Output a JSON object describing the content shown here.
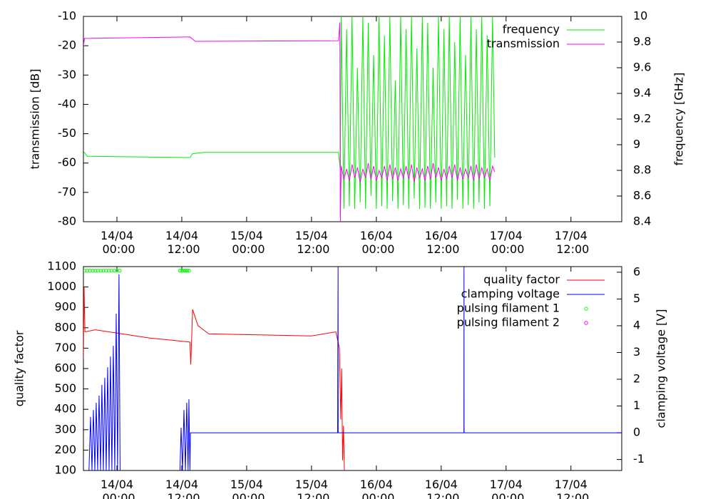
{
  "chart_data": [
    {
      "type": "line",
      "y_label": "transmission [dB]",
      "y2_label": "frequency [GHz]",
      "xlim": [
        "13/04 17:48",
        "17/04 21:24"
      ],
      "xticks": [
        "14/04 00:00",
        "14/04 12:00",
        "15/04 00:00",
        "15/04 12:00",
        "16/04 00:00",
        "16/04 12:00",
        "17/04 00:00",
        "17/04 12:00"
      ],
      "ylim": [
        -80,
        -10
      ],
      "yticks": [
        -80,
        -70,
        -60,
        -50,
        -40,
        -30,
        -20,
        -10
      ],
      "y2lim": [
        8.4,
        10
      ],
      "y2ticks": [
        8.4,
        8.6,
        8.8,
        9,
        9.2,
        9.4,
        9.6,
        9.8,
        10
      ],
      "legend": "upper right",
      "series": [
        {
          "name": "frequency",
          "color": "#00ee00",
          "axis": "y2",
          "x": [
            "13/04 17:48",
            "13/04 18:30",
            "14/04 13:30",
            "14/04 14:00",
            "14/04 16:00",
            "15/04 17:00",
            "15/04 17:20",
            "15/04 17:30",
            "15/04 18:00",
            "15/04 18:30",
            "15/04 19:00",
            "15/04 19:30",
            "15/04 20:00",
            "15/04 20:30",
            "15/04 21:00",
            "15/04 21:30",
            "15/04 22:00",
            "15/04 22:30",
            "15/04 23:00",
            "15/04 23:30",
            "16/04 00:00",
            "16/04 00:30",
            "16/04 01:00",
            "16/04 01:30",
            "16/04 02:00",
            "16/04 02:30",
            "16/04 03:00",
            "16/04 03:30",
            "16/04 04:00",
            "16/04 04:30",
            "16/04 05:00",
            "16/04 05:30",
            "16/04 06:00",
            "16/04 06:30",
            "16/04 07:00",
            "16/04 07:30",
            "16/04 08:00",
            "16/04 08:30",
            "16/04 09:00",
            "16/04 09:30",
            "16/04 10:00",
            "16/04 10:30",
            "16/04 11:00",
            "16/04 11:30",
            "16/04 12:00",
            "16/04 12:30",
            "16/04 13:00",
            "16/04 13:30",
            "16/04 14:00",
            "16/04 14:30",
            "16/04 15:00",
            "16/04 15:30",
            "16/04 16:00",
            "16/04 16:30",
            "16/04 17:00",
            "16/04 17:30",
            "16/04 18:00",
            "16/04 18:30",
            "16/04 19:00",
            "16/04 19:30",
            "16/04 20:00",
            "16/04 20:30",
            "16/04 21:00",
            "16/04 21:30",
            "16/04 21:54"
          ],
          "values": [
            8.95,
            8.91,
            8.9,
            8.93,
            8.94,
            8.94,
            8.8,
            10,
            8.5,
            9.9,
            8.52,
            10,
            8.5,
            9.6,
            8.55,
            10,
            8.5,
            9.95,
            8.6,
            9.7,
            8.5,
            10,
            8.52,
            9.85,
            8.5,
            10,
            8.56,
            9.5,
            8.5,
            10,
            8.53,
            9.9,
            8.5,
            10,
            8.58,
            9.75,
            8.5,
            10,
            8.51,
            9.95,
            8.5,
            9.6,
            8.55,
            10,
            8.5,
            9.9,
            8.52,
            10,
            8.5,
            9.8,
            8.57,
            10,
            8.5,
            9.7,
            8.53,
            10,
            8.5,
            9.9,
            8.55,
            10,
            8.5,
            9.85,
            8.52,
            10,
            8.9
          ]
        },
        {
          "name": "transmission",
          "color": "#ff00ff",
          "x": [
            "13/04 17:48",
            "13/04 18:00",
            "14/04 13:30",
            "14/04 14:30",
            "15/04 17:00",
            "15/04 17:15",
            "15/04 17:20",
            "15/04 17:30",
            "15/04 18:00",
            "15/04 18:30",
            "15/04 19:00",
            "15/04 19:30",
            "15/04 20:00",
            "15/04 20:30",
            "15/04 21:00",
            "15/04 21:30",
            "15/04 22:00",
            "15/04 22:30",
            "15/04 23:00",
            "15/04 23:30",
            "16/04 00:00",
            "16/04 00:30",
            "16/04 01:00",
            "16/04 01:30",
            "16/04 02:00",
            "16/04 02:30",
            "16/04 03:00",
            "16/04 03:30",
            "16/04 04:00",
            "16/04 04:30",
            "16/04 05:00",
            "16/04 05:30",
            "16/04 06:00",
            "16/04 06:30",
            "16/04 07:00",
            "16/04 07:30",
            "16/04 08:00",
            "16/04 08:30",
            "16/04 09:00",
            "16/04 09:30",
            "16/04 10:00",
            "16/04 10:30",
            "16/04 11:00",
            "16/04 11:30",
            "16/04 12:00",
            "16/04 12:30",
            "16/04 13:00",
            "16/04 13:30",
            "16/04 14:00",
            "16/04 14:30",
            "16/04 15:00",
            "16/04 15:30",
            "16/04 16:00",
            "16/04 16:30",
            "16/04 17:00",
            "16/04 17:30",
            "16/04 18:00",
            "16/04 18:30",
            "16/04 19:00",
            "16/04 19:30",
            "16/04 20:00",
            "16/04 20:30",
            "16/04 21:00",
            "16/04 21:30",
            "16/04 21:54"
          ],
          "values": [
            -20,
            -17.5,
            -17,
            -18.5,
            -18.3,
            -12,
            -80,
            -61,
            -65.5,
            -62,
            -66,
            -60.5,
            -65,
            -61.5,
            -66.5,
            -62,
            -65,
            -60,
            -65.5,
            -61,
            -66,
            -62.5,
            -65,
            -61,
            -66,
            -60.5,
            -65.5,
            -61.5,
            -66,
            -62,
            -65,
            -61,
            -65.5,
            -60.5,
            -66.5,
            -61.5,
            -65,
            -62,
            -66,
            -61,
            -65.5,
            -60,
            -65,
            -61.5,
            -66,
            -62,
            -65.5,
            -61,
            -65,
            -60.5,
            -66,
            -61.5,
            -65.5,
            -62,
            -65,
            -61,
            -66,
            -60.5,
            -65.5,
            -61.5,
            -65,
            -62,
            -66,
            -61,
            -63
          ]
        }
      ]
    },
    {
      "type": "line",
      "y_label": "quality factor",
      "y2_label": "clamping voltage [V]",
      "xlim": [
        "13/04 17:48",
        "17/04 21:24"
      ],
      "xticks": [
        "14/04 00:00",
        "14/04 12:00",
        "15/04 00:00",
        "15/04 12:00",
        "16/04 00:00",
        "16/04 12:00",
        "17/04 00:00",
        "17/04 12:00"
      ],
      "ylim": [
        100,
        1100
      ],
      "yticks": [
        100,
        200,
        300,
        400,
        500,
        600,
        700,
        800,
        900,
        1000,
        1100
      ],
      "y2lim": [
        -1.41,
        6.21
      ],
      "y2ticks": [
        -1,
        0,
        1,
        2,
        3,
        4,
        5,
        6
      ],
      "legend": "upper right",
      "series": [
        {
          "name": "quality factor",
          "color": "#ff0000",
          "x": [
            "13/04 17:48",
            "13/04 17:55",
            "13/04 18:05",
            "13/04 20:00",
            "14/04 06:00",
            "14/04 13:30",
            "14/04 13:40",
            "14/04 14:00",
            "14/04 15:00",
            "14/04 16:00",
            "14/04 17:00",
            "15/04 12:00",
            "15/04 16:30",
            "15/04 17:10",
            "15/04 17:25",
            "15/04 17:35",
            "15/04 17:45",
            "15/04 17:55",
            "15/04 18:05"
          ],
          "values": [
            650,
            1000,
            780,
            790,
            750,
            730,
            620,
            890,
            810,
            790,
            770,
            760,
            780,
            700,
            350,
            600,
            150,
            320,
            100
          ]
        },
        {
          "name": "clamping voltage",
          "color": "#0000ff",
          "axis": "y2",
          "x": [
            "13/04 18:50",
            "13/04 19:07",
            "13/04 19:23",
            "13/04 19:39",
            "13/04 19:55",
            "13/04 20:10",
            "13/04 20:26",
            "13/04 20:42",
            "13/04 20:58",
            "13/04 21:13",
            "13/04 21:29",
            "13/04 21:45",
            "13/04 22:01",
            "13/04 22:17",
            "13/04 22:33",
            "13/04 22:48",
            "13/04 23:04",
            "13/04 23:20",
            "13/04 23:36",
            "13/04 23:52",
            "14/04 00:07",
            "14/04 00:23",
            "14/04 00:35",
            "14/04 06:00",
            "14/04 11:40",
            "14/04 11:52",
            "14/04 12:08",
            "14/04 12:24",
            "14/04 12:40",
            "14/04 12:55",
            "14/04 13:10",
            "14/04 13:19",
            "14/04 13:30",
            "14/04 13:36",
            "15/04 16:50",
            "15/04 16:55",
            "15/04 16:56",
            "16/04 16:12",
            "16/04 16:13",
            "16/04 16:14",
            "17/04 21:24"
          ],
          "values": [
            -1.4,
            0.59,
            -1.4,
            0.85,
            -1.4,
            1.12,
            -1.4,
            1.39,
            -1.4,
            1.79,
            -1.4,
            2.05,
            -1.4,
            2.45,
            -1.4,
            2.85,
            -1.4,
            3.25,
            -1.4,
            4.45,
            -1.4,
            5.92,
            -1.4,
            null,
            -1.4,
            0.19,
            -1.4,
            0.85,
            -1.4,
            1.12,
            -1.4,
            1.25,
            -1.4,
            0,
            0,
            6.2,
            0,
            0,
            6.2,
            0,
            0
          ]
        },
        {
          "name": "pulsing filament 1",
          "color": "#00ff00",
          "mode": "points",
          "x": [
            "13/04 18:00",
            "13/04 18:30",
            "13/04 19:00",
            "13/04 19:30",
            "13/04 20:00",
            "13/04 20:30",
            "13/04 21:00",
            "13/04 21:30",
            "13/04 22:00",
            "13/04 22:30",
            "13/04 23:00",
            "13/04 23:30",
            "14/04 00:00",
            "14/04 00:30",
            "14/04 11:40",
            "14/04 12:00",
            "14/04 12:20",
            "14/04 12:40",
            "14/04 13:00",
            "14/04 13:20"
          ],
          "values": [
            1080,
            1080,
            1080,
            1080,
            1080,
            1080,
            1080,
            1080,
            1080,
            1080,
            1080,
            1080,
            1080,
            1080,
            1080,
            1080,
            1080,
            1080,
            1080,
            1080
          ]
        },
        {
          "name": "pulsing filament 2",
          "color": "#ff00ff",
          "mode": "points",
          "x": [],
          "values": []
        }
      ]
    }
  ]
}
